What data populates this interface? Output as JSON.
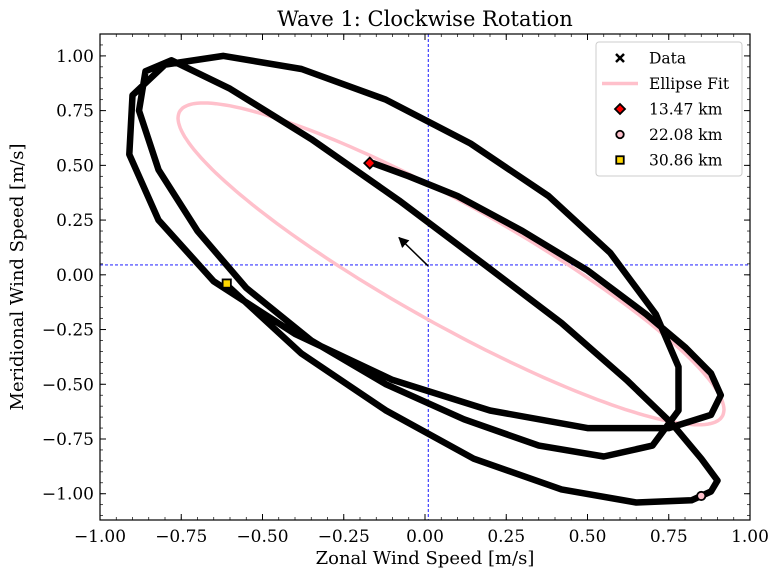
{
  "chart_data": {
    "type": "line",
    "title": "Wave 1: Clockwise Rotation",
    "xlabel": "Zonal Wind Speed [m/s]",
    "ylabel": "Meridional Wind Speed [m/s]",
    "xlim": [
      -1.0,
      1.0
    ],
    "ylim": [
      -1.12,
      1.1
    ],
    "xticks": [
      -1.0,
      -0.75,
      -0.5,
      -0.25,
      0.0,
      0.25,
      0.5,
      0.75,
      1.0
    ],
    "xtick_labels": [
      "−1.00",
      "−0.75",
      "−0.50",
      "−0.25",
      "0.00",
      "0.25",
      "0.50",
      "0.75",
      "1.00"
    ],
    "yticks": [
      -1.0,
      -0.75,
      -0.5,
      -0.25,
      0.0,
      0.25,
      0.5,
      0.75,
      1.0
    ],
    "ytick_labels": [
      "−1.00",
      "−0.75",
      "−0.50",
      "−0.25",
      "0.00",
      "0.25",
      "0.50",
      "0.75",
      "1.00"
    ],
    "grid": false,
    "legend_position": "top-right",
    "mean_lines": {
      "x": 0.01,
      "y": 0.045,
      "color": "#0000ff"
    },
    "series": [
      {
        "name": "Data",
        "kind": "data-trace",
        "color": "#000000",
        "x": [
          -0.16,
          -0.05,
          0.1,
          0.3,
          0.5,
          0.68,
          0.8,
          0.88,
          0.91,
          0.88,
          0.75,
          0.5,
          0.2,
          -0.1,
          -0.4,
          -0.65,
          -0.82,
          -0.91,
          -0.9,
          -0.8,
          -0.62,
          -0.38,
          -0.12,
          0.14,
          0.38,
          0.57,
          0.71,
          0.78,
          0.78,
          0.7,
          0.55,
          0.35,
          0.12,
          -0.12,
          -0.35,
          -0.55,
          -0.7,
          -0.82,
          -0.88,
          -0.86,
          -0.78,
          -0.6,
          -0.35,
          -0.08,
          0.18,
          0.42,
          0.62,
          0.76,
          0.85,
          0.9,
          0.88,
          0.82,
          0.65,
          0.42,
          0.15,
          -0.12,
          -0.38,
          -0.6
        ],
        "y": [
          0.51,
          0.45,
          0.36,
          0.2,
          0.02,
          -0.18,
          -0.33,
          -0.45,
          -0.55,
          -0.64,
          -0.7,
          -0.7,
          -0.62,
          -0.48,
          -0.27,
          -0.03,
          0.25,
          0.55,
          0.82,
          0.96,
          1.0,
          0.94,
          0.8,
          0.6,
          0.36,
          0.1,
          -0.18,
          -0.42,
          -0.62,
          -0.78,
          -0.83,
          -0.78,
          -0.66,
          -0.5,
          -0.3,
          -0.06,
          0.2,
          0.48,
          0.75,
          0.93,
          0.98,
          0.85,
          0.62,
          0.34,
          0.05,
          -0.22,
          -0.48,
          -0.68,
          -0.84,
          -0.94,
          -0.99,
          -1.03,
          -1.04,
          -0.98,
          -0.84,
          -0.62,
          -0.36,
          -0.06
        ]
      },
      {
        "name": "Ellipse Fit",
        "kind": "ellipse",
        "color": "#ffc0cb",
        "center": [
          0.08,
          0.05
        ],
        "semi_major": 1.09,
        "semi_minor": 0.24,
        "angle_deg": -40.8
      },
      {
        "name": "13.47 km",
        "kind": "marker",
        "shape": "diamond",
        "color": "#ff0000",
        "x": -0.17,
        "y": 0.51
      },
      {
        "name": "22.08 km",
        "kind": "marker",
        "shape": "circle",
        "color": "#ffc0cb",
        "x": 0.85,
        "y": -1.01
      },
      {
        "name": "30.86 km",
        "kind": "marker",
        "shape": "square",
        "color": "#ffd700",
        "x": -0.61,
        "y": -0.04
      }
    ],
    "annotation_arrow": {
      "from": [
        0.01,
        0.04
      ],
      "to": [
        -0.08,
        0.17
      ],
      "color": "#000000"
    }
  }
}
